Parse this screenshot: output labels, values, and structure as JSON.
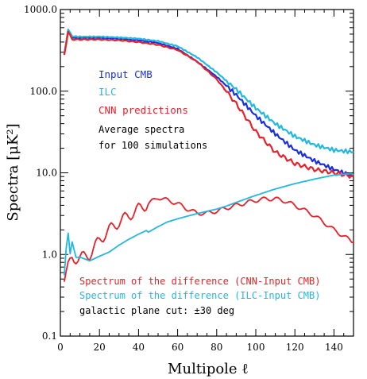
{
  "chart_data": {
    "type": "line",
    "title": "",
    "xlabel": "Multipole ℓ",
    "ylabel": "Spectra [μK²]",
    "xlim": [
      0,
      150
    ],
    "ylim": [
      0.1,
      1000
    ],
    "yscale": "log",
    "x_ticks": [
      0,
      20,
      40,
      60,
      80,
      100,
      120,
      140
    ],
    "x_tick_labels": [
      "0",
      "20",
      "40",
      "60",
      "80",
      "100",
      "120",
      "140"
    ],
    "y_ticks": [
      0.1,
      1,
      10,
      100,
      1000
    ],
    "y_tick_labels": [
      "0.1",
      "1.0",
      "10.0",
      "100.0",
      "1000.0"
    ],
    "grid": false,
    "series": [
      {
        "name": "Input CMB",
        "color": "#1a2fe0",
        "x": [
          2,
          4,
          6,
          10,
          20,
          30,
          40,
          50,
          60,
          70,
          80,
          90,
          100,
          110,
          120,
          130,
          140,
          150
        ],
        "y": [
          280,
          560,
          450,
          450,
          450,
          440,
          420,
          390,
          330,
          230,
          150,
          90,
          50,
          30,
          19,
          14,
          11,
          9
        ]
      },
      {
        "name": "ILC",
        "color": "#22b8e0",
        "x": [
          2,
          4,
          6,
          10,
          20,
          30,
          40,
          50,
          60,
          70,
          80,
          90,
          100,
          110,
          120,
          130,
          140,
          150
        ],
        "y": [
          285,
          575,
          470,
          465,
          465,
          455,
          440,
          410,
          355,
          260,
          170,
          105,
          62,
          40,
          28,
          22,
          19,
          18
        ]
      },
      {
        "name": "CNN predictions",
        "color": "#e8202a",
        "x": [
          2,
          4,
          6,
          10,
          20,
          30,
          40,
          50,
          60,
          70,
          80,
          90,
          100,
          110,
          120,
          130,
          140,
          150
        ],
        "y": [
          275,
          540,
          430,
          430,
          430,
          420,
          400,
          370,
          320,
          230,
          140,
          70,
          32,
          18,
          13,
          11,
          10,
          9
        ]
      },
      {
        "name": "Spectrum of the difference (CNN-Input CMB)",
        "color": "#e8202a",
        "x": [
          2,
          4,
          6,
          10,
          15,
          20,
          25,
          30,
          35,
          40,
          45,
          50,
          55,
          60,
          65,
          70,
          75,
          80,
          85,
          90,
          95,
          100,
          105,
          110,
          115,
          120,
          130,
          140,
          150
        ],
        "y": [
          0.5,
          0.7,
          0.9,
          0.9,
          1.0,
          1.5,
          2.0,
          2.5,
          3.0,
          3.6,
          4.2,
          5.0,
          4.6,
          4.2,
          3.6,
          3.2,
          3.2,
          3.4,
          3.7,
          4.0,
          4.3,
          4.6,
          4.8,
          4.8,
          4.5,
          4.0,
          3.0,
          2.0,
          1.4
        ]
      },
      {
        "name": "Spectrum of the difference (ILC-Input CMB)",
        "color": "#22b8e0",
        "x": [
          2,
          3,
          4,
          5,
          6,
          8,
          10,
          15,
          20,
          25,
          30,
          35,
          40,
          45,
          50,
          55,
          60,
          65,
          70,
          75,
          80,
          85,
          90,
          100,
          110,
          120,
          130,
          140,
          150
        ],
        "y": [
          0.55,
          1.2,
          1.8,
          1.0,
          1.4,
          0.9,
          0.9,
          0.8,
          0.9,
          1.0,
          1.2,
          1.4,
          1.6,
          1.8,
          2.1,
          2.4,
          2.6,
          2.8,
          3.0,
          3.2,
          3.4,
          3.7,
          4.1,
          5.0,
          6.0,
          7.0,
          8.0,
          9.0,
          9.5
        ]
      }
    ],
    "annotations": [
      {
        "text": "Average spectra",
        "color": "#000000"
      },
      {
        "text": "for 100 simulations",
        "color": "#000000"
      },
      {
        "text": "galactic plane cut: ±30 deg",
        "color": "#000000"
      }
    ]
  }
}
